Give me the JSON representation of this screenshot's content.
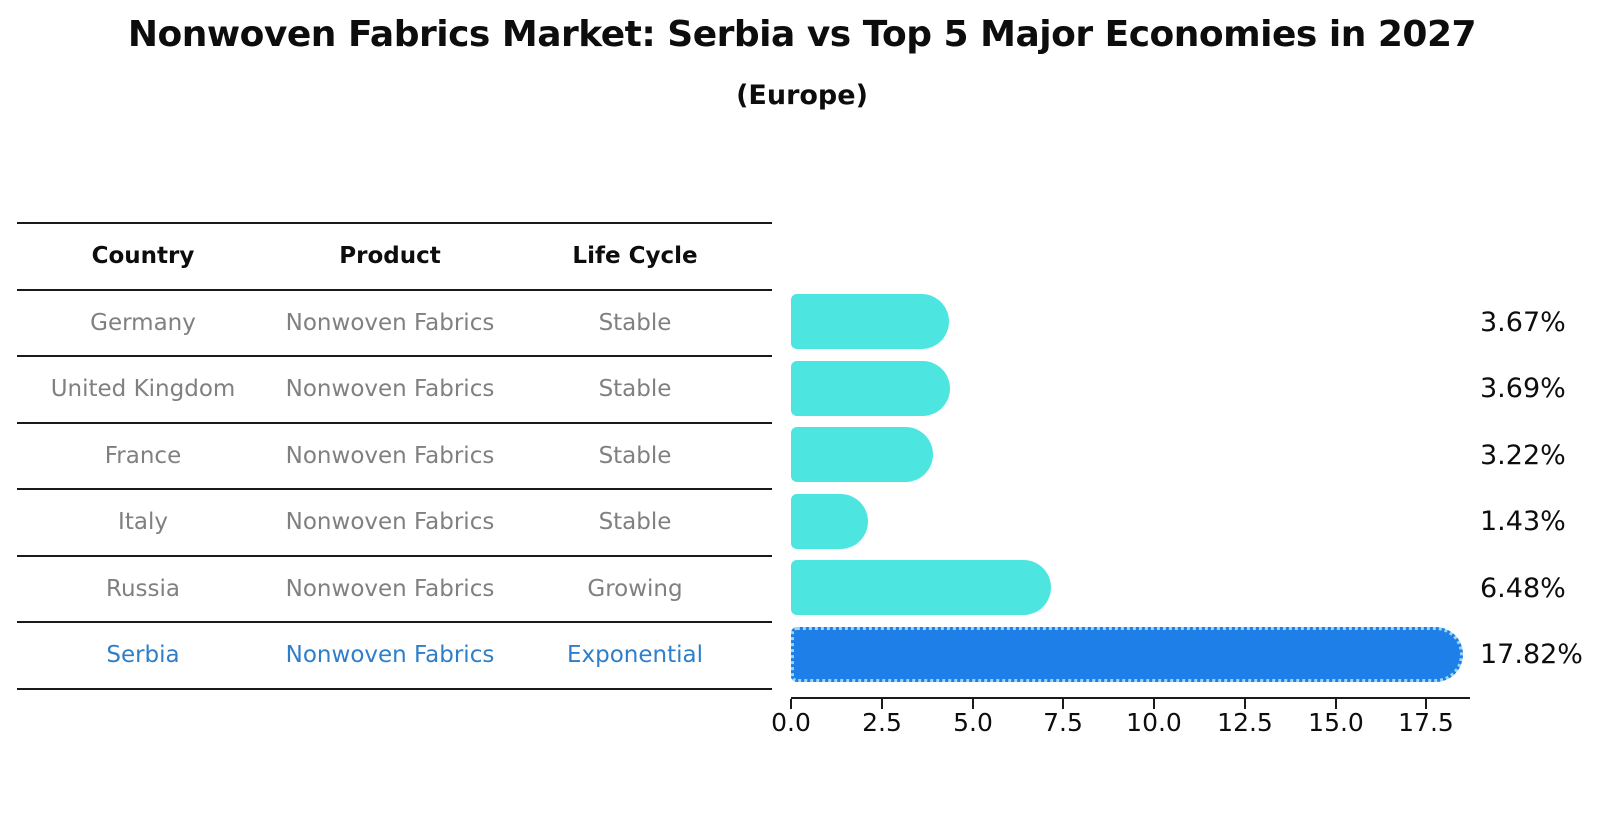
{
  "title": "Nonwoven Fabrics Market: Serbia vs Top 5 Major Economies in 2027",
  "subtitle": "(Europe)",
  "table": {
    "headers": [
      "Country",
      "Product",
      "Life Cycle"
    ],
    "rows": [
      {
        "country": "Germany",
        "product": "Nonwoven Fabrics",
        "life_cycle": "Stable",
        "highlight": false
      },
      {
        "country": "United Kingdom",
        "product": "Nonwoven Fabrics",
        "life_cycle": "Stable",
        "highlight": false
      },
      {
        "country": "France",
        "product": "Nonwoven Fabrics",
        "life_cycle": "Stable",
        "highlight": false
      },
      {
        "country": "Italy",
        "product": "Nonwoven Fabrics",
        "life_cycle": "Stable",
        "highlight": false
      },
      {
        "country": "Russia",
        "product": "Nonwoven Fabrics",
        "life_cycle": "Growing",
        "highlight": false
      },
      {
        "country": "Serbia",
        "product": "Nonwoven Fabrics",
        "life_cycle": "Exponential",
        "highlight": true
      }
    ]
  },
  "chart_data": {
    "type": "bar",
    "orientation": "horizontal",
    "title": "Nonwoven Fabrics Market: Serbia vs Top 5 Major Economies in 2027",
    "subtitle": "(Europe)",
    "categories": [
      "Germany",
      "United Kingdom",
      "France",
      "Italy",
      "Russia",
      "Serbia"
    ],
    "values": [
      3.67,
      3.69,
      3.22,
      1.43,
      6.48,
      17.82
    ],
    "value_labels": [
      "3.67%",
      "3.69%",
      "3.22%",
      "1.43%",
      "6.48%",
      "17.82%"
    ],
    "x_ticks": [
      "0.0",
      "2.5",
      "5.0",
      "7.5",
      "10.0",
      "12.5",
      "15.0",
      "17.5"
    ],
    "xlim": [
      0,
      18.7
    ],
    "grid": false,
    "legend": "none",
    "highlight_index": 5,
    "colors": {
      "bar_default": "#4de5e0",
      "bar_highlight": "#1e7fe8",
      "bar_highlight_border": "#9bd7f2",
      "highlight_text": "#2e7ec9",
      "row_text": "#808080",
      "axis_text": "#0d0d0d",
      "line": "#1a1a1a",
      "background": "#ffffff"
    }
  }
}
